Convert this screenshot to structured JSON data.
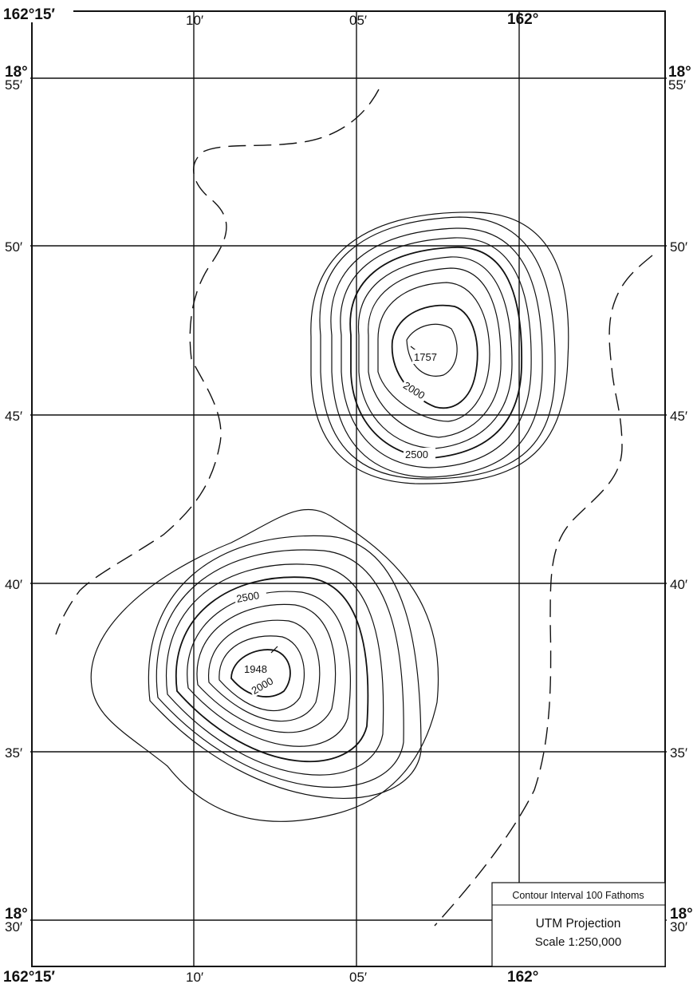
{
  "map": {
    "longitude_labels_top": [
      "162°15′",
      "10′",
      "05′",
      "162°"
    ],
    "longitude_labels_bottom": [
      "162°15′",
      "10′",
      "05′",
      "162°"
    ],
    "latitude_labels_left": [
      {
        "deg": "18°",
        "min": "55′"
      },
      {
        "min": "50′"
      },
      {
        "min": "45′"
      },
      {
        "min": "40′"
      },
      {
        "min": "35′"
      },
      {
        "deg": "18°",
        "min": "30′"
      }
    ],
    "latitude_labels_right": [
      {
        "deg": "18°",
        "min": "55′"
      },
      {
        "min": "50′"
      },
      {
        "min": "45′"
      },
      {
        "min": "40′"
      },
      {
        "min": "35′"
      },
      {
        "deg": "18°",
        "min": "30′"
      }
    ],
    "seamounts": [
      {
        "peak_depth": "1757",
        "contour_labels": [
          "2000",
          "2500"
        ]
      },
      {
        "peak_depth": "1948",
        "contour_labels": [
          "2500",
          "2000"
        ]
      }
    ],
    "legend": {
      "contour_interval": "Contour Interval 100 Fathoms",
      "projection": "UTM Projection",
      "scale": "Scale 1:250,000"
    }
  }
}
